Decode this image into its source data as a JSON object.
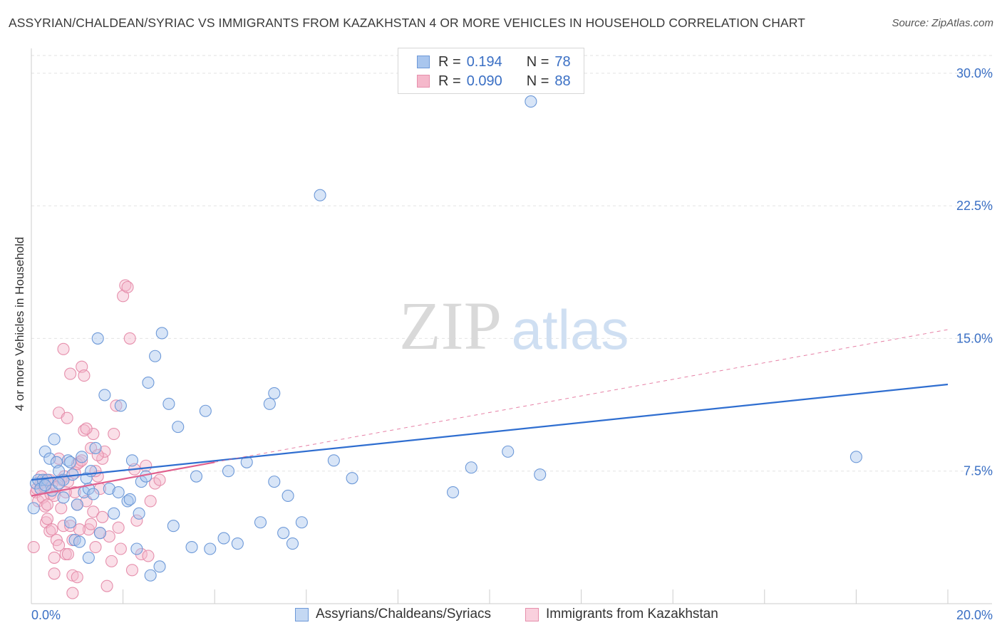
{
  "title": "ASSYRIAN/CHALDEAN/SYRIAC VS IMMIGRANTS FROM KAZAKHSTAN 4 OR MORE VEHICLES IN HOUSEHOLD CORRELATION CHART",
  "source": "Source: ZipAtlas.com",
  "watermark": {
    "zip": "ZIP",
    "atlas": "atlas"
  },
  "legend": {
    "rows": [
      {
        "r_label": "R =",
        "r_value": "0.194",
        "n_label": "N =",
        "n_value": "78"
      },
      {
        "r_label": "R =",
        "r_value": "0.090",
        "n_label": "N =",
        "n_value": "88"
      }
    ]
  },
  "colors": {
    "blue_fill": "#a9c6ee",
    "blue_stroke": "#6d99d8",
    "blue_line": "#2f6ed0",
    "pink_fill": "#f5b8cb",
    "pink_stroke": "#e68fac",
    "pink_line": "#e0608e",
    "grid": "#e2e2e2",
    "tick_label": "#3a6fc4"
  },
  "chart_data": {
    "type": "scatter",
    "title": "ASSYRIAN/CHALDEAN/SYRIAC VS IMMIGRANTS FROM KAZAKHSTAN 4 OR MORE VEHICLES IN HOUSEHOLD CORRELATION CHART",
    "xlabel": "",
    "ylabel": "4 or more Vehicles in Household",
    "xlim": [
      0,
      20
    ],
    "ylim": [
      0,
      31
    ],
    "x_tick_labels": [
      "0.0%",
      "20.0%"
    ],
    "y_ticks": [
      7.5,
      15.0,
      22.5,
      30.0
    ],
    "y_tick_labels": [
      "7.5%",
      "15.0%",
      "22.5%",
      "30.0%"
    ],
    "grid": true,
    "legend_position": "top-center",
    "series": [
      {
        "name": "Assyrians/Chaldeans/Syriacs",
        "color": "blue",
        "r": 0.194,
        "n": 78,
        "trend": {
          "x": [
            0,
            20
          ],
          "y": [
            7.0,
            12.4
          ],
          "dashed_extension": false
        },
        "points": [
          [
            0.05,
            5.4
          ],
          [
            0.1,
            6.8
          ],
          [
            0.15,
            7.0
          ],
          [
            0.2,
            6.5
          ],
          [
            0.25,
            7.0
          ],
          [
            0.3,
            8.6
          ],
          [
            0.35,
            7.0
          ],
          [
            0.4,
            8.2
          ],
          [
            0.5,
            9.3
          ],
          [
            0.55,
            8.0
          ],
          [
            0.6,
            7.5
          ],
          [
            0.7,
            7.0
          ],
          [
            0.8,
            8.1
          ],
          [
            0.85,
            4.6
          ],
          [
            0.9,
            7.3
          ],
          [
            0.95,
            3.6
          ],
          [
            1.0,
            5.6
          ],
          [
            1.1,
            8.3
          ],
          [
            1.15,
            6.3
          ],
          [
            1.2,
            7.1
          ],
          [
            1.25,
            6.5
          ],
          [
            1.3,
            7.5
          ],
          [
            1.4,
            8.8
          ],
          [
            1.45,
            15.0
          ],
          [
            1.5,
            4.0
          ],
          [
            1.6,
            11.8
          ],
          [
            1.7,
            6.5
          ],
          [
            1.8,
            5.1
          ],
          [
            1.95,
            11.2
          ],
          [
            2.1,
            5.8
          ],
          [
            2.2,
            8.1
          ],
          [
            2.3,
            3.1
          ],
          [
            2.35,
            5.1
          ],
          [
            2.4,
            6.9
          ],
          [
            2.5,
            7.2
          ],
          [
            2.55,
            12.5
          ],
          [
            2.6,
            1.6
          ],
          [
            2.7,
            14.0
          ],
          [
            2.8,
            2.1
          ],
          [
            2.85,
            15.3
          ],
          [
            3.0,
            11.3
          ],
          [
            3.1,
            4.4
          ],
          [
            3.2,
            10.0
          ],
          [
            3.5,
            3.2
          ],
          [
            3.6,
            7.2
          ],
          [
            3.8,
            10.9
          ],
          [
            4.2,
            3.7
          ],
          [
            4.3,
            7.5
          ],
          [
            4.5,
            3.4
          ],
          [
            4.7,
            8.0
          ],
          [
            5.0,
            4.6
          ],
          [
            5.2,
            11.3
          ],
          [
            5.3,
            11.9
          ],
          [
            5.3,
            6.9
          ],
          [
            5.5,
            4.0
          ],
          [
            5.6,
            6.1
          ],
          [
            5.7,
            3.4
          ],
          [
            5.9,
            4.6
          ],
          [
            6.3,
            23.1
          ],
          [
            6.6,
            8.1
          ],
          [
            7.0,
            7.1
          ],
          [
            9.2,
            6.3
          ],
          [
            9.6,
            7.7
          ],
          [
            10.4,
            8.6
          ],
          [
            10.9,
            28.4
          ],
          [
            11.1,
            7.3
          ],
          [
            18.0,
            8.3
          ],
          [
            1.25,
            2.6
          ],
          [
            0.7,
            6.0
          ],
          [
            1.35,
            6.2
          ],
          [
            1.9,
            6.3
          ],
          [
            0.45,
            6.4
          ],
          [
            3.9,
            3.1
          ],
          [
            1.05,
            3.5
          ],
          [
            2.15,
            5.9
          ],
          [
            0.6,
            6.8
          ],
          [
            0.3,
            6.7
          ],
          [
            0.85,
            8.0
          ]
        ]
      },
      {
        "name": "Immigrants from Kazakhstan",
        "color": "pink",
        "r": 0.09,
        "n": 88,
        "trend": {
          "x": [
            0,
            4
          ],
          "y": [
            6.1,
            8.0
          ],
          "dashed_extension_to": [
            20,
            15.5
          ]
        },
        "points": [
          [
            0.05,
            3.2
          ],
          [
            0.1,
            6.3
          ],
          [
            0.12,
            6.5
          ],
          [
            0.15,
            5.8
          ],
          [
            0.2,
            6.8
          ],
          [
            0.22,
            7.2
          ],
          [
            0.25,
            6.0
          ],
          [
            0.28,
            6.6
          ],
          [
            0.3,
            5.5
          ],
          [
            0.32,
            4.6
          ],
          [
            0.35,
            4.8
          ],
          [
            0.4,
            4.1
          ],
          [
            0.42,
            6.2
          ],
          [
            0.45,
            4.2
          ],
          [
            0.5,
            2.6
          ],
          [
            0.5,
            1.7
          ],
          [
            0.55,
            3.6
          ],
          [
            0.6,
            3.3
          ],
          [
            0.6,
            10.8
          ],
          [
            0.65,
            7.0
          ],
          [
            0.7,
            14.4
          ],
          [
            0.72,
            7.2
          ],
          [
            0.75,
            2.8
          ],
          [
            0.78,
            10.5
          ],
          [
            0.8,
            2.8
          ],
          [
            0.85,
            13.0
          ],
          [
            0.9,
            1.6
          ],
          [
            0.9,
            0.6
          ],
          [
            0.95,
            6.3
          ],
          [
            1.0,
            5.6
          ],
          [
            1.0,
            1.5
          ],
          [
            1.05,
            8.0
          ],
          [
            1.1,
            13.4
          ],
          [
            1.15,
            12.9
          ],
          [
            1.2,
            5.8
          ],
          [
            1.25,
            4.2
          ],
          [
            1.3,
            4.5
          ],
          [
            1.35,
            9.6
          ],
          [
            1.4,
            3.2
          ],
          [
            1.45,
            7.2
          ],
          [
            1.5,
            6.5
          ],
          [
            1.55,
            8.2
          ],
          [
            1.6,
            8.6
          ],
          [
            1.65,
            1.0
          ],
          [
            1.7,
            3.8
          ],
          [
            1.75,
            2.4
          ],
          [
            1.8,
            9.6
          ],
          [
            1.85,
            11.2
          ],
          [
            1.9,
            4.3
          ],
          [
            1.95,
            3.1
          ],
          [
            2.0,
            17.4
          ],
          [
            2.05,
            18.0
          ],
          [
            2.1,
            17.9
          ],
          [
            2.15,
            15.0
          ],
          [
            2.2,
            1.9
          ],
          [
            2.25,
            7.6
          ],
          [
            2.3,
            4.7
          ],
          [
            2.4,
            2.8
          ],
          [
            2.5,
            7.8
          ],
          [
            2.55,
            2.7
          ],
          [
            2.6,
            5.8
          ],
          [
            2.7,
            6.8
          ],
          [
            2.8,
            7.0
          ],
          [
            0.3,
            7.0
          ],
          [
            0.35,
            5.6
          ],
          [
            0.4,
            7.0
          ],
          [
            0.45,
            6.8
          ],
          [
            0.5,
            6.1
          ],
          [
            0.55,
            6.6
          ],
          [
            0.6,
            8.2
          ],
          [
            0.65,
            5.4
          ],
          [
            0.7,
            4.4
          ],
          [
            0.75,
            6.3
          ],
          [
            0.8,
            6.9
          ],
          [
            0.85,
            4.4
          ],
          [
            0.9,
            3.6
          ],
          [
            0.95,
            7.4
          ],
          [
            1.0,
            7.9
          ],
          [
            1.05,
            4.2
          ],
          [
            1.1,
            8.1
          ],
          [
            1.15,
            9.8
          ],
          [
            1.2,
            9.9
          ],
          [
            1.3,
            8.8
          ],
          [
            1.35,
            5.2
          ],
          [
            1.4,
            7.5
          ],
          [
            1.45,
            8.4
          ],
          [
            1.5,
            4.0
          ],
          [
            1.55,
            4.9
          ]
        ]
      }
    ]
  }
}
